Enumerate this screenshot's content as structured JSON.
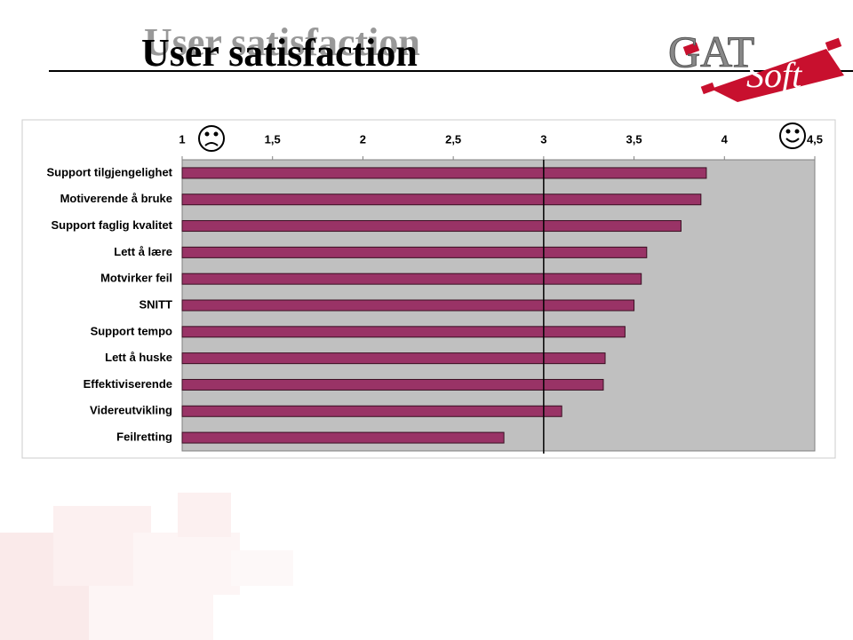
{
  "title": "User satisfaction",
  "logo": {
    "main": "GAT",
    "sub": "Soft"
  },
  "chart_data": {
    "type": "bar",
    "orientation": "horizontal",
    "categories": [
      "Support tilgjengelighet",
      "Motiverende å bruke",
      "Support faglig kvalitet",
      "Lett å lære",
      "Motvirker feil",
      "SNITT",
      "Support tempo",
      "Lett å huske",
      "Effektiviserende",
      "Videreutvikling",
      "Feilretting"
    ],
    "values": [
      3.9,
      3.87,
      3.76,
      3.57,
      3.54,
      3.5,
      3.45,
      3.34,
      3.33,
      3.1,
      2.78
    ],
    "color": "#993366",
    "xlim": [
      1,
      4.5
    ],
    "xticks": [
      1,
      {
        "value": 1.5,
        "label": "1,5"
      },
      2,
      {
        "value": 2.5,
        "label": "2,5"
      },
      3,
      {
        "value": 3.5,
        "label": "3,5"
      },
      4,
      {
        "value": 4.5,
        "label": "4,5"
      }
    ],
    "reference_line": 3,
    "plot_background": "#c0c0c0"
  }
}
